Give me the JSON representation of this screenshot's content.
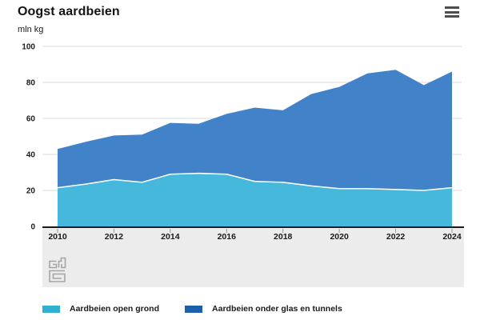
{
  "header": {
    "title": "Oogst aardbeien",
    "unit_label": "mln kg",
    "menu_icon": "hamburger-menu-icon"
  },
  "chart_data": {
    "type": "area",
    "stacked": true,
    "title": "Oogst aardbeien",
    "ylabel": "mln kg",
    "xlabel": "",
    "grid": true,
    "legend_position": "bottom",
    "ylim": [
      0,
      100
    ],
    "yticks": [
      0,
      20,
      40,
      60,
      80,
      100
    ],
    "xticks": [
      2010,
      2012,
      2014,
      2016,
      2018,
      2020,
      2022,
      2024
    ],
    "x": [
      2010,
      2011,
      2012,
      2013,
      2014,
      2015,
      2016,
      2017,
      2018,
      2019,
      2020,
      2021,
      2022,
      2023,
      2024
    ],
    "series": [
      {
        "name": "Aardbeien open grond",
        "color": "#45b8dc",
        "legend_color": "#2fb0d1",
        "values": [
          21.5,
          23.5,
          26,
          24.5,
          29,
          29.5,
          29,
          25,
          24.5,
          22.5,
          21,
          21,
          20.5,
          20,
          21.5
        ]
      },
      {
        "name": "Aardbeien onder glas en tunnels",
        "color": "#4182c8",
        "legend_color": "#1b5fad",
        "values": [
          21.5,
          23.5,
          24.5,
          26.5,
          28.5,
          27.5,
          33.5,
          41,
          40,
          51,
          56.5,
          64,
          66.5,
          58.5,
          64.5
        ]
      }
    ]
  },
  "footer": {
    "logo": "cbs-logo-icon"
  },
  "colors": {
    "grid": "#dadada",
    "axis": "#1a1a1a",
    "tick": "#999999",
    "band": "#ececec",
    "label": "#1a1a1a",
    "separator": "#ffffff",
    "logo": "#a5a5a5"
  }
}
